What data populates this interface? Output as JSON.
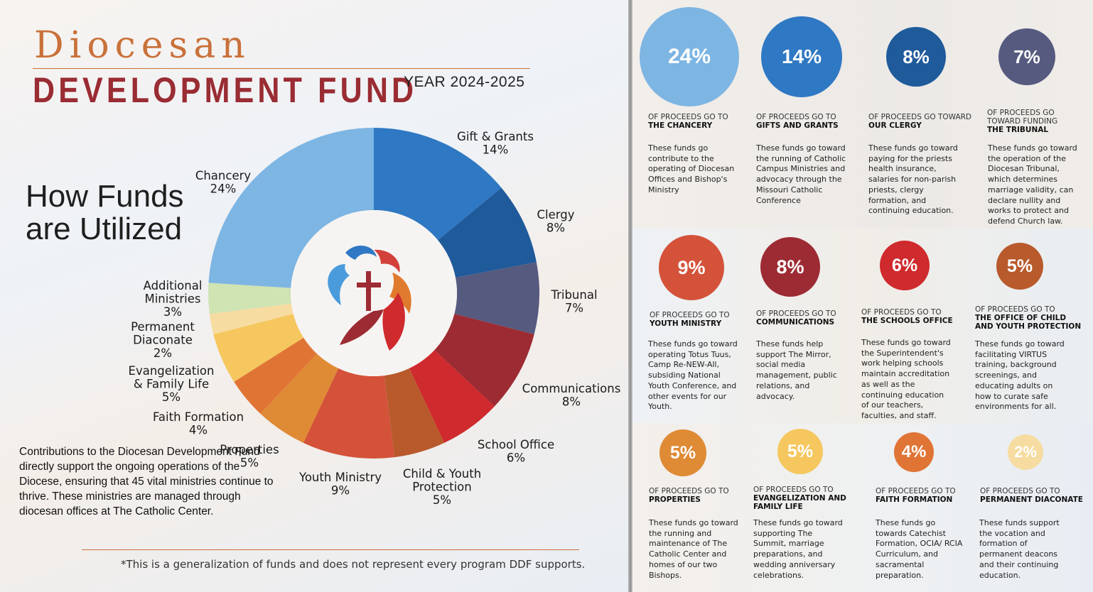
{
  "header": {
    "title_script": "Diocesan",
    "title_main": "DEVELOPMENT FUND",
    "year": "YEAR  2024-2025"
  },
  "heading": {
    "line1": "How Funds",
    "line2": "are Utilized"
  },
  "contribution_text": "Contributions to the Diocesan Development Fund directly support the ongoing operations of the Diocese, ensuring that 45 vital ministries continue to thrive. These ministries are managed through diocesan offices at The Catholic Center.",
  "footnote": "*This is a generalization of funds and does not represent every program DDF supports.",
  "chart_data": {
    "type": "pie",
    "title": "How Funds are Utilized",
    "donut": true,
    "slices": [
      {
        "name": "Gift & Grants",
        "value": 14,
        "label": "14%",
        "color": "#2f78c3"
      },
      {
        "name": "Clergy",
        "value": 8,
        "label": "8%",
        "color": "#1f5a9b"
      },
      {
        "name": "Tribunal",
        "value": 7,
        "label": "7%",
        "color": "#565a7f"
      },
      {
        "name": "Communications",
        "value": 8,
        "label": "8%",
        "color": "#9d2b33"
      },
      {
        "name": "School Office",
        "value": 6,
        "label": "6%",
        "color": "#cf2a2d"
      },
      {
        "name": "Child & Youth Protection",
        "value": 5,
        "label": "5%",
        "color": "#b85a2c"
      },
      {
        "name": "Youth Ministry",
        "value": 9,
        "label": "9%",
        "color": "#d4523a"
      },
      {
        "name": "Properties",
        "value": 5,
        "label": "5%",
        "color": "#df8a34"
      },
      {
        "name": "Faith Formation",
        "value": 4,
        "label": "4%",
        "color": "#e07435"
      },
      {
        "name": "Evangelization & Family Life",
        "value": 5,
        "label": "5%",
        "color": "#f5c75e"
      },
      {
        "name": "Permanent Diaconate",
        "value": 2,
        "label": "2%",
        "color": "#f6dca0"
      },
      {
        "name": "Additional Ministries",
        "value": 3,
        "label": "3%",
        "color": "#cfe3b3"
      },
      {
        "name": "Chancery",
        "value": 24,
        "label": "24%",
        "color": "#7db5e3"
      }
    ],
    "labels": [
      {
        "lines": [
          "Gift & Grants",
          "14%"
        ]
      },
      {
        "lines": [
          "Clergy",
          "8%"
        ]
      },
      {
        "lines": [
          "Tribunal",
          "7%"
        ]
      },
      {
        "lines": [
          "Communications",
          "8%"
        ]
      },
      {
        "lines": [
          "School Office",
          "6%"
        ]
      },
      {
        "lines": [
          "Child & Youth",
          "Protection",
          "5%"
        ]
      },
      {
        "lines": [
          "Youth Ministry",
          "9%"
        ]
      },
      {
        "lines": [
          "Properties",
          "5%"
        ]
      },
      {
        "lines": [
          "Faith Formation",
          "4%"
        ]
      },
      {
        "lines": [
          "Evangelization",
          "& Family Life",
          "5%"
        ]
      },
      {
        "lines": [
          "Permanent",
          "Diaconate",
          "2%"
        ]
      },
      {
        "lines": [
          "Additional",
          "Ministries",
          "3%"
        ]
      },
      {
        "lines": [
          "Chancery",
          "24%"
        ]
      }
    ]
  },
  "cards": [
    {
      "pct": "24%",
      "color": "#7db5e3",
      "top": "OF PROCEEDS GO TO",
      "bold": "THE CHANCERY",
      "desc": "These funds go contribute to the operating of Diocesan Offices and Bishop's Ministry"
    },
    {
      "pct": "14%",
      "color": "#2f78c3",
      "top": "OF PROCEEDS GO TO",
      "bold": "GIFTS AND GRANTS",
      "desc": "These funds go toward the running of Catholic Campus Ministries and advocacy through the Missouri Catholic Conference"
    },
    {
      "pct": "8%",
      "color": "#1f5a9b",
      "top": "OF PROCEEDS GO TOWARD",
      "bold": "OUR CLERGY",
      "desc": "These funds go toward paying for the priests health insurance, salaries for non-parish priests, clergy formation, and continuing education."
    },
    {
      "pct": "7%",
      "color": "#565a7f",
      "top": "OF PROCEEDS GO TOWARD FUNDING",
      "bold": "THE TRIBUNAL",
      "desc": "These funds go toward the operation of the Diocesan Tribunal, which determines marriage validity, can declare nullity and works to protect and defend Church law."
    },
    {
      "pct": "9%",
      "color": "#d4523a",
      "top": "OF PROCEEDS GO TO",
      "bold": "YOUTH MINISTRY",
      "desc": "These funds go toward operating Totus Tuus, Camp Re-NEW-All, subsiding National Youth Conference, and other events for our Youth."
    },
    {
      "pct": "8%",
      "color": "#9d2b33",
      "top": "OF PROCEEDS GO TO",
      "bold": "COMMUNICATIONS",
      "desc": "These funds help support The Mirror, social media management, public relations, and advocacy."
    },
    {
      "pct": "6%",
      "color": "#cf2a2d",
      "top": "OF PROCEEDS GO TO",
      "bold": "THE SCHOOLS OFFICE",
      "desc": "These funds go toward the Superintendent's work helping schools maintain accreditation as well as the continuing education of our teachers, faculties, and staff."
    },
    {
      "pct": "5%",
      "color": "#b85a2c",
      "top": "OF PROCEEDS GO TO",
      "bold": "THE OFFICE OF CHILD AND YOUTH PROTECTION",
      "desc": "These funds go toward facilitating VIRTUS training,  background screenings, and educating adults on how to curate safe environments for all."
    },
    {
      "pct": "5%",
      "color": "#df8a34",
      "top": "OF PROCEEDS GO TO",
      "bold": "PROPERTIES",
      "desc": "These funds go toward the running and maintenance of The Catholic Center and homes of our two Bishops."
    },
    {
      "pct": "5%",
      "color": "#f5c75e",
      "top": "OF PROCEEDS GO TO",
      "bold": "EVANGELIZATION AND FAMILY LIFE",
      "desc": "These funds go toward  supporting The Summit, marriage preparations, and wedding anniversary celebrations."
    },
    {
      "pct": "4%",
      "color": "#e07435",
      "top": "OF PROCEEDS GO TO",
      "bold": "FAITH FORMATION",
      "desc": "These funds go towards Catechist Formation, OCIA/ RCIA Curriculum, and sacramental preparation."
    },
    {
      "pct": "2%",
      "color": "#f6dca0",
      "top": "OF PROCEEDS GO TO",
      "bold": "PERMANENT DIACONATE",
      "desc": "These funds  support the vocation and formation of permanent deacons and their continuing education."
    }
  ]
}
